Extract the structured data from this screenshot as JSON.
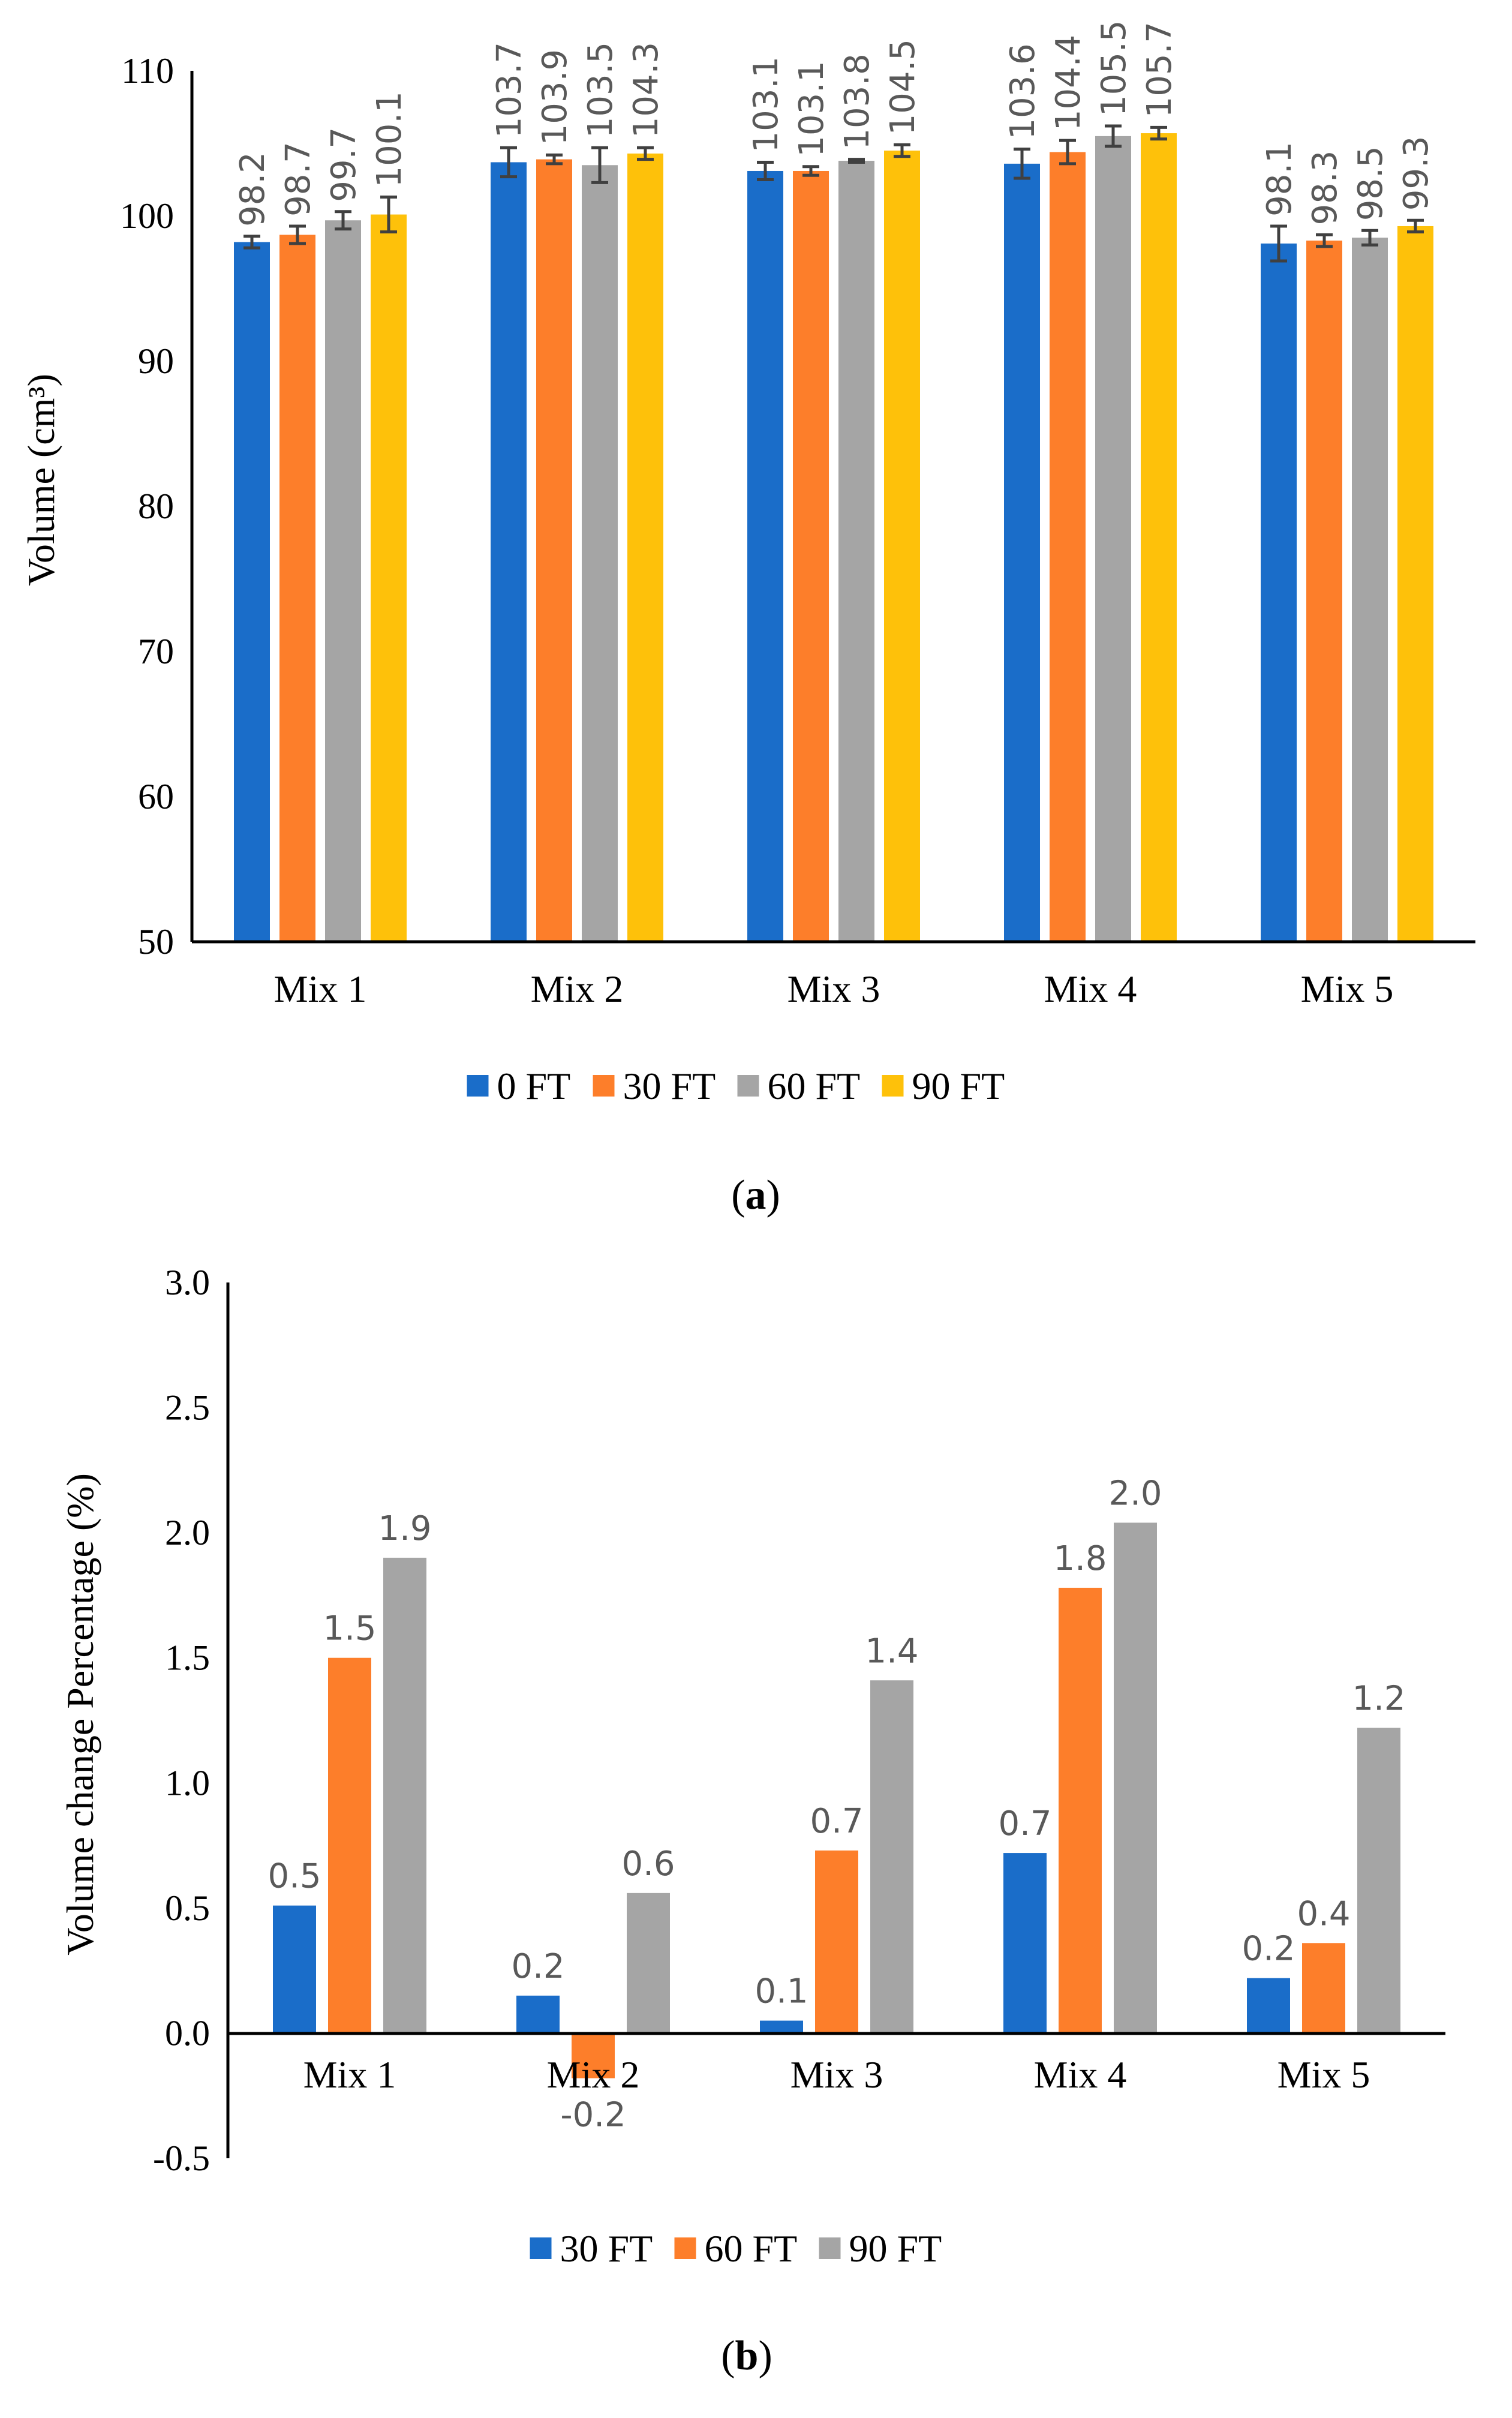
{
  "chart_data": [
    {
      "type": "bar",
      "panel_label": "a",
      "title": "",
      "xlabel": "",
      "ylabel": "Volume (cm³)",
      "ylim": [
        50,
        110
      ],
      "yticks": [
        50,
        60,
        70,
        80,
        90,
        100,
        110
      ],
      "ytick_labels": [
        "50",
        "60",
        "70",
        "80",
        "90",
        "100",
        "110"
      ],
      "grid": false,
      "legend_position": "bottom",
      "categories": [
        "Mix 1",
        "Mix 2",
        "Mix 3",
        "Mix 4",
        "Mix 5"
      ],
      "series": [
        {
          "name": "0 FT",
          "color": "#1a6dc9",
          "values": [
            98.2,
            103.7,
            103.1,
            103.6,
            98.1
          ],
          "labels": [
            "98.2",
            "103.7",
            "103.1",
            "103.6",
            "98.1"
          ],
          "errors": [
            0.4,
            1.0,
            0.6,
            1.0,
            1.2
          ]
        },
        {
          "name": "30 FT",
          "color": "#fd7e2a",
          "values": [
            98.7,
            103.9,
            103.1,
            104.4,
            98.3
          ],
          "labels": [
            "98.7",
            "103.9",
            "103.1",
            "104.4",
            "98.3"
          ],
          "errors": [
            0.6,
            0.3,
            0.3,
            0.8,
            0.4
          ]
        },
        {
          "name": "60 FT",
          "color": "#a5a5a5",
          "values": [
            99.7,
            103.5,
            103.8,
            105.5,
            98.5
          ],
          "labels": [
            "99.7",
            "103.5",
            "103.8",
            "105.5",
            "98.5"
          ],
          "errors": [
            0.6,
            1.2,
            0.1,
            0.7,
            0.5
          ]
        },
        {
          "name": "90 FT",
          "color": "#fec10a",
          "values": [
            100.1,
            104.3,
            104.5,
            105.7,
            99.3
          ],
          "labels": [
            "100.1",
            "104.3",
            "104.5",
            "105.7",
            "99.3"
          ],
          "errors": [
            1.2,
            0.4,
            0.4,
            0.4,
            0.4
          ]
        }
      ]
    },
    {
      "type": "bar",
      "panel_label": "b",
      "title": "",
      "xlabel": "",
      "ylabel": "Volume change Percentage (%)",
      "ylim": [
        -0.5,
        3.0
      ],
      "yticks": [
        -0.5,
        0.0,
        0.5,
        1.0,
        1.5,
        2.0,
        2.5,
        3.0
      ],
      "ytick_labels": [
        "-0.5",
        "0.0",
        "0.5",
        "1.0",
        "1.5",
        "2.0",
        "2.5",
        "3.0"
      ],
      "grid": false,
      "legend_position": "bottom",
      "categories": [
        "Mix 1",
        "Mix 2",
        "Mix 3",
        "Mix 4",
        "Mix 5"
      ],
      "series": [
        {
          "name": "30 FT",
          "color": "#1a6dc9",
          "values": [
            0.51,
            0.15,
            0.05,
            0.72,
            0.22
          ],
          "labels": [
            "0.5",
            "0.2",
            "0.1",
            "0.7",
            "0.2"
          ]
        },
        {
          "name": "60 FT",
          "color": "#fd7e2a",
          "values": [
            1.5,
            -0.18,
            0.73,
            1.78,
            0.36
          ],
          "labels": [
            "1.5",
            "-0.2",
            "0.7",
            "1.8",
            "0.4"
          ]
        },
        {
          "name": "90 FT",
          "color": "#a5a5a5",
          "values": [
            1.9,
            0.56,
            1.41,
            2.04,
            1.22
          ],
          "labels": [
            "1.9",
            "0.6",
            "1.4",
            "2.0",
            "1.2"
          ]
        }
      ]
    }
  ]
}
